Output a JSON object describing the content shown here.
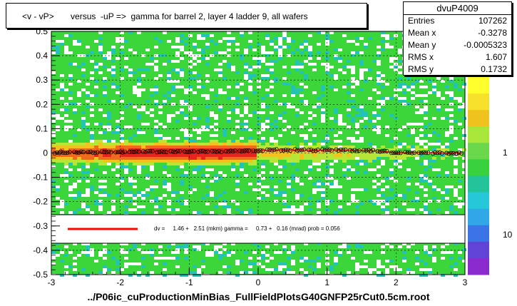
{
  "title": "<v - vP>       versus  -uP =>  gamma for barrel 2, layer 4 ladder 9, all wafers",
  "footer": "../P06ic_cuProductionMinBias_FullFieldPlotsG40GNFP25rCut0.5cm.root",
  "stats": {
    "name": "dvuP4009",
    "rows": [
      {
        "label": "Entries",
        "value": "107262"
      },
      {
        "label": "Mean x",
        "value": "-0.3278"
      },
      {
        "label": "Mean y",
        "value": "-0.0005323"
      },
      {
        "label": "RMS x",
        "value": "1.607"
      },
      {
        "label": "RMS y",
        "value": "0.1732"
      }
    ]
  },
  "fit_text": "dv =     1.46 +   2.51 (mkm) gamma =     0.73 +   0.16 (mrad) prob = 0.056",
  "chart_data": {
    "type": "heatmap",
    "xlim": [
      -3,
      3
    ],
    "ylim": [
      -0.5,
      0.5
    ],
    "x_ticks": [
      "-3",
      "-2",
      "-1",
      "0",
      "1",
      "2",
      "3"
    ],
    "y_ticks": [
      "-0.5",
      "-0.4",
      "-0.3",
      "-0.2",
      "-0.1",
      "0",
      "0.1",
      "0.2",
      "0.3",
      "0.4",
      "0.5"
    ],
    "z_scale": "log",
    "z_ticks": [
      "1",
      "10"
    ],
    "grid": true,
    "profile_points": [
      {
        "x": -2.95,
        "y": 0.0
      },
      {
        "x": -2.8,
        "y": 0.003
      },
      {
        "x": -2.6,
        "y": 0.004
      },
      {
        "x": -2.4,
        "y": 0.003
      },
      {
        "x": -2.2,
        "y": 0.005
      },
      {
        "x": -2.0,
        "y": 0.004
      },
      {
        "x": -1.8,
        "y": 0.005
      },
      {
        "x": -1.6,
        "y": 0.006
      },
      {
        "x": -1.4,
        "y": 0.005
      },
      {
        "x": -1.2,
        "y": 0.006
      },
      {
        "x": -1.0,
        "y": 0.005
      },
      {
        "x": -0.8,
        "y": 0.007
      },
      {
        "x": -0.6,
        "y": 0.006
      },
      {
        "x": -0.4,
        "y": 0.007
      },
      {
        "x": -0.2,
        "y": 0.008
      },
      {
        "x": 0.0,
        "y": 0.01
      },
      {
        "x": 0.2,
        "y": 0.013
      },
      {
        "x": 0.4,
        "y": 0.012
      },
      {
        "x": 0.6,
        "y": 0.013
      },
      {
        "x": 0.8,
        "y": 0.011
      },
      {
        "x": 1.0,
        "y": 0.013
      },
      {
        "x": 1.2,
        "y": 0.012
      },
      {
        "x": 1.4,
        "y": 0.01
      },
      {
        "x": 1.6,
        "y": 0.01
      },
      {
        "x": 1.8,
        "y": 0.007
      },
      {
        "x": 2.0,
        "y": 0.001
      },
      {
        "x": 2.2,
        "y": 0.002
      },
      {
        "x": 2.4,
        "y": 0.001
      },
      {
        "x": 2.6,
        "y": 0.0
      },
      {
        "x": 2.8,
        "y": -0.001
      },
      {
        "x": 2.95,
        "y": 0.0
      }
    ],
    "colors": {
      "fit_line": "#ff0000",
      "frame": "#000000"
    }
  }
}
